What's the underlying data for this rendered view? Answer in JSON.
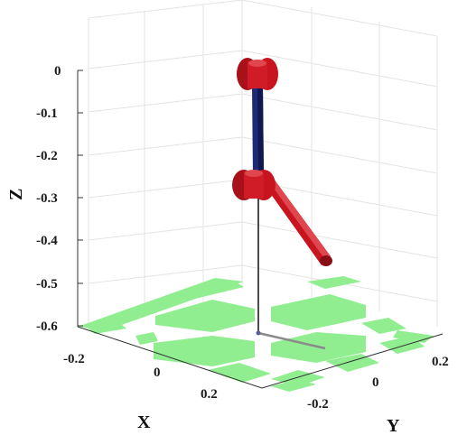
{
  "axes": {
    "x_label": "X",
    "y_label": "Y",
    "z_label": "Z",
    "x_ticks": [
      "-0.2",
      "0",
      "0.2"
    ],
    "y_ticks": [
      "-0.2",
      "0",
      "0.2"
    ],
    "z_ticks": [
      "0",
      "-0.1",
      "-0.2",
      "-0.3",
      "-0.4",
      "-0.5",
      "-0.6"
    ],
    "grid": true
  },
  "colors": {
    "floor_pattern": "#90ee90",
    "joint": "#c8141e",
    "upper_link": "#1e2a78",
    "lower_link": "#c8141e",
    "plumb_line": "#000000",
    "shadow": "#888888"
  }
}
